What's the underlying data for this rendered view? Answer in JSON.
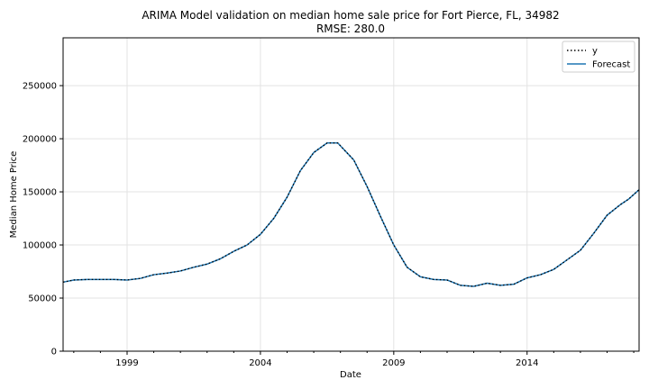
{
  "chart_data": {
    "type": "line",
    "title": "ARIMA Model validation on median home sale price for Fort Pierce, FL, 34982",
    "subtitle": "RMSE: 280.0",
    "xlabel": "Date",
    "ylabel": "Median Home Price",
    "xlim": [
      1996.6,
      2018.2
    ],
    "ylim": [
      0,
      295000
    ],
    "x_ticks": [
      1999,
      2004,
      2009,
      2014
    ],
    "x_tick_labels": [
      "1999",
      "2004",
      "2009",
      "2014"
    ],
    "y_ticks": [
      0,
      50000,
      100000,
      150000,
      200000,
      250000
    ],
    "y_tick_labels": [
      "0",
      "50000",
      "100000",
      "150000",
      "200000",
      "250000"
    ],
    "grid": true,
    "legend_position": "top-right",
    "colors": {
      "actual": "#000000",
      "forecast": "#1f77b4",
      "grid": "#e3e3e3"
    },
    "series": [
      {
        "name": "y",
        "style": "dotted",
        "x": [
          1996.6,
          1997.0,
          1997.5,
          1998.0,
          1998.5,
          1999.0,
          1999.5,
          2000.0,
          2000.5,
          2001.0,
          2001.5,
          2002.0,
          2002.5,
          2003.0,
          2003.5,
          2004.0,
          2004.5,
          2005.0,
          2005.5,
          2006.0,
          2006.5,
          2006.9,
          2007.5,
          2008.0,
          2008.5,
          2009.0,
          2009.5,
          2010.0,
          2010.5,
          2011.0,
          2011.5,
          2012.0,
          2012.5,
          2013.0,
          2013.5,
          2014.0,
          2014.5,
          2015.0,
          2015.5,
          2016.0,
          2016.5,
          2017.0,
          2017.5,
          2017.8,
          2018.2
        ],
        "values": [
          65000,
          67000,
          67500,
          67500,
          67500,
          67000,
          68500,
          72000,
          73500,
          75500,
          79000,
          82000,
          87000,
          94000,
          100000,
          110000,
          125000,
          145000,
          170000,
          187000,
          196000,
          196000,
          180000,
          155000,
          127000,
          100000,
          79000,
          70000,
          67500,
          67000,
          62000,
          61000,
          64000,
          62000,
          63000,
          69000,
          72000,
          77000,
          86000,
          95000,
          111000,
          128000,
          138000,
          143000,
          152000
        ]
      },
      {
        "name": "Forecast",
        "style": "solid",
        "x": [
          1996.6,
          1997.0,
          1997.5,
          1998.0,
          1998.5,
          1999.0,
          1999.5,
          2000.0,
          2000.5,
          2001.0,
          2001.5,
          2002.0,
          2002.5,
          2003.0,
          2003.5,
          2004.0,
          2004.5,
          2005.0,
          2005.5,
          2006.0,
          2006.5,
          2006.9,
          2007.5,
          2008.0,
          2008.5,
          2009.0,
          2009.5,
          2010.0,
          2010.5,
          2011.0,
          2011.5,
          2012.0,
          2012.5,
          2013.0,
          2013.5,
          2014.0,
          2014.5,
          2015.0,
          2015.5,
          2016.0,
          2016.5,
          2017.0,
          2017.5,
          2017.8,
          2018.2
        ],
        "values": [
          65000,
          67000,
          67500,
          67500,
          67500,
          67000,
          68500,
          72000,
          73500,
          75500,
          79000,
          82000,
          87000,
          94000,
          100000,
          110000,
          125000,
          145000,
          170000,
          187000,
          196000,
          196000,
          180000,
          155000,
          127000,
          100000,
          79000,
          70000,
          67500,
          67000,
          62000,
          61000,
          64000,
          62000,
          63000,
          69000,
          72000,
          77000,
          86000,
          95000,
          111000,
          128000,
          138000,
          143000,
          152000
        ]
      }
    ]
  }
}
